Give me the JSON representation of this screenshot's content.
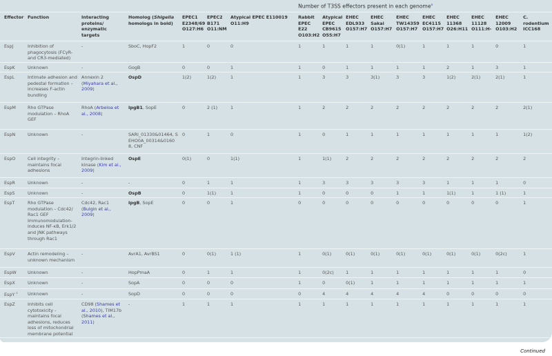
{
  "caption": {
    "title": "Number of T3SS effectors present in each genome",
    "footnote_mark": "a"
  },
  "headers": [
    "Effector",
    "Function",
    "Interacting proteins/ enzymatic targets"
  ],
  "homolog_header": {
    "pre": "Homolog (",
    "italic": "Shigella",
    "post": " homologs in bold)"
  },
  "genome_headers": [
    "EPEC1 E2348/69 O127:H6",
    "EPEC2 B171 O11:NM",
    "Atypical EPEC E110019 O11:H9",
    "Rabbit EPEC E22 O103:H2",
    "Atypical EPEC CB9615 O55:H7",
    "EHEC EDL933 O157:H7",
    "EHEC Sakai O157:H7",
    "EHEC TW14359 O157:H7",
    "EHEC EC4115 O157:H7",
    "EHEC 11368 O26:H11",
    "EHEC 11128 O111:H-",
    "EHEC 12009 O103:H2",
    "C. rodentium ICC168"
  ],
  "rows": [
    {
      "effector": "EspJ",
      "function": "Inhibition of phagocytosis (FCγR- and CR3-mediated)",
      "interacting": [
        {
          "t": "-"
        }
      ],
      "homolog": [
        {
          "t": "SboC, HopF2"
        }
      ],
      "counts": [
        "1",
        "0",
        "0",
        "1",
        "1",
        "1",
        "1",
        "0(1)",
        "1",
        "1",
        "1",
        "0",
        "1"
      ]
    },
    {
      "effector": "EspK",
      "function": "Unknown",
      "interacting": [
        {
          "t": "-"
        }
      ],
      "homolog": [
        {
          "t": "GogB"
        }
      ],
      "counts": [
        "0",
        "0",
        "1",
        "1",
        "0",
        "1",
        "1",
        "1",
        "1",
        "2",
        "1",
        "3",
        "1"
      ]
    },
    {
      "effector": "EspL",
      "function": "Intimate adhesion and pedestal formation – increases F-actin bundling",
      "interacting": [
        {
          "t": "Annexin 2 ("
        },
        {
          "t": "Miyahara et al., 2009",
          "link": true
        },
        {
          "t": ")"
        }
      ],
      "homolog": [
        {
          "t": "OspD",
          "bold": true
        }
      ],
      "counts": [
        "1(2)",
        "1(2)",
        "1",
        "1",
        "3",
        "3",
        "3(1)",
        "3",
        "3",
        "1(2)",
        "2(1)",
        "2(1)",
        "1"
      ]
    },
    {
      "effector": "EspM",
      "function": "Rho GTPase modulation – RhoA GEF",
      "interacting": [
        {
          "t": "RhoA ("
        },
        {
          "t": "Arbeloa et al., 2008",
          "link": true
        },
        {
          "t": ")"
        }
      ],
      "homolog": [
        {
          "t": "IpgB1",
          "bold": true
        },
        {
          "t": ", SopE"
        }
      ],
      "counts": [
        "0",
        "2 (1)",
        "1",
        "1",
        "2",
        "2",
        "2",
        "2",
        "2",
        "2",
        "2",
        "2",
        "2(1)"
      ]
    },
    {
      "effector": "EspN",
      "function": "Unknown",
      "interacting": [
        {
          "t": "-"
        }
      ],
      "homolog": [
        {
          "t": "SARI_01330&01464, SEHO0A_00314&01608, CNF"
        }
      ],
      "counts": [
        "0",
        "1",
        "0",
        "1",
        "0",
        "1",
        "1",
        "1",
        "1",
        "1",
        "1",
        "1",
        "1(2)"
      ]
    },
    {
      "effector": "EspO",
      "function": "Cell integrity – maintains focal adhesions",
      "interacting": [
        {
          "t": "Integrin-linked kinase ("
        },
        {
          "t": "Kim et al., 2009",
          "link": true
        },
        {
          "t": ")"
        }
      ],
      "homolog": [
        {
          "t": "OspE",
          "bold": true
        }
      ],
      "counts": [
        "0(1)",
        "0",
        "1(1)",
        "1",
        "1(1)",
        "2",
        "2",
        "2",
        "2",
        "2",
        "2",
        "2",
        "2"
      ]
    },
    {
      "effector": "EspR",
      "function": "Unknown",
      "interacting": [
        {
          "t": "-"
        }
      ],
      "homolog": [
        {
          "t": "-"
        }
      ],
      "counts": [
        "0",
        "1",
        "1",
        "1",
        "3",
        "3",
        "3",
        "3",
        "3",
        "1",
        "1",
        "1",
        "0"
      ]
    },
    {
      "effector": "EspS",
      "function": "Unknown",
      "interacting": [
        {
          "t": "-"
        }
      ],
      "homolog": [
        {
          "t": "OspB",
          "bold": true
        }
      ],
      "counts": [
        "0",
        "1(1)",
        "1",
        "1",
        "0",
        "0",
        "0",
        "1",
        "1",
        "1(1)",
        "1",
        "1 (1)",
        "1"
      ]
    },
    {
      "effector": "EspT",
      "function": "Rho GTPase modulation – Cdc42/ Rac1 GEF Immunomodulation- induces NF-κB, Erk1/2 and JNK pathways through Rac1",
      "interacting": [
        {
          "t": "Cdc42, Rac1 ("
        },
        {
          "t": "Bulgin et al., 2009",
          "link": true
        },
        {
          "t": ")"
        }
      ],
      "homolog": [
        {
          "t": "IpgB",
          "bold": true
        },
        {
          "t": ", SopE"
        }
      ],
      "counts": [
        "0",
        "0",
        "1",
        "0",
        "0",
        "0",
        "0",
        "0",
        "0",
        "0",
        "0",
        "0",
        "1"
      ]
    },
    {
      "effector": "EspV",
      "function": "Actin remodeling – unknown mechanism",
      "interacting": [
        {
          "t": "-"
        }
      ],
      "homolog": [
        {
          "t": "AvrA1, AvrBS1"
        }
      ],
      "counts": [
        "0",
        "0(1)",
        "1 (1)",
        "1",
        "0(1)",
        "0(1)",
        "0(1)",
        "0(1)",
        "0(1)",
        "0(1)",
        "0(1)",
        "0(2c)",
        "1"
      ]
    },
    {
      "effector": "EspW",
      "function": "Unknown",
      "interacting": [
        {
          "t": "-"
        }
      ],
      "homolog": [
        {
          "t": "HopPmaA"
        }
      ],
      "counts": [
        "0",
        "1",
        "1",
        "1",
        "0(2c)",
        "1",
        "1",
        "1",
        "1",
        "1",
        "1",
        "1",
        "0"
      ]
    },
    {
      "effector": "EspX",
      "function": "Unknown",
      "interacting": [
        {
          "t": "-"
        }
      ],
      "homolog": [
        {
          "t": "SopA"
        }
      ],
      "counts": [
        "0",
        "0",
        "0",
        "1",
        "0",
        "0(1)",
        "1",
        "1",
        "1",
        "1",
        "1",
        "1",
        "1"
      ]
    },
    {
      "effector": "EspY",
      "effector_mark": "c",
      "function": "Unknown",
      "interacting": [
        {
          "t": "-"
        }
      ],
      "homolog": [
        {
          "t": "SopD"
        }
      ],
      "counts": [
        "0",
        "0",
        "0",
        "0",
        "4",
        "4",
        "4",
        "4",
        "4",
        "0",
        "0",
        "0",
        "0"
      ]
    },
    {
      "effector": "EspZ",
      "function": "Inhibits cell cytotoxicity - maintains focal adhesions, reduces loss of mitochondrial membrane potential",
      "interacting": [
        {
          "t": "CD98 ("
        },
        {
          "t": "Shames et al., 2010",
          "link": true
        },
        {
          "t": "), TIM17b ("
        },
        {
          "t": "Shames et al., 2011",
          "link": true
        },
        {
          "t": ")"
        }
      ],
      "homolog": [
        {
          "t": "-"
        }
      ],
      "counts": [
        "1",
        "1",
        "1",
        "1",
        "1",
        "1",
        "1",
        "1",
        "1",
        "1",
        "1",
        "1",
        "1"
      ]
    }
  ],
  "footer": {
    "continued": "Continued"
  }
}
